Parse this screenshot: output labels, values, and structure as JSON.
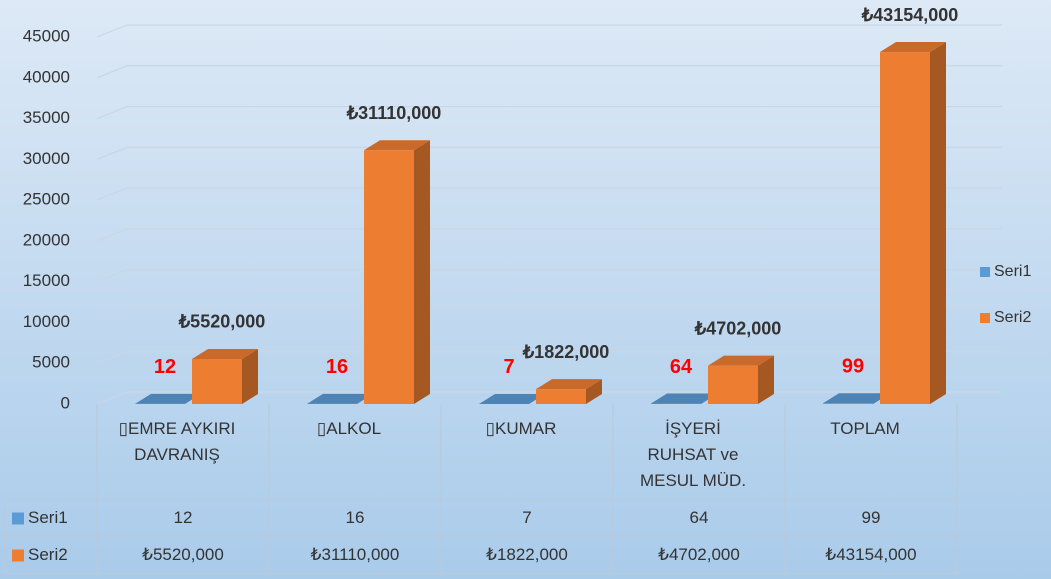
{
  "chart_data": {
    "type": "bar3d",
    "categories": [
      "▯EMRE AYKIRI DAVRANIŞ",
      "▯ALKOL",
      "▯KUMAR",
      "İŞYERİ RUHSAT ve MESUL MÜD.",
      "TOPLAM"
    ],
    "series": [
      {
        "name": "Seri1",
        "color": "#5b9bd5",
        "values": [
          12,
          16,
          7,
          64,
          99
        ]
      },
      {
        "name": "Seri2",
        "color": "#ed7d31",
        "values": [
          5520,
          31110,
          1822,
          4702,
          43154
        ],
        "value_labels": [
          "₺5520,000",
          "₺31110,000",
          "₺1822,000",
          "₺4702,000",
          "₺43154,000"
        ]
      }
    ],
    "ylim": [
      0,
      45000
    ],
    "yticks": [
      0,
      5000,
      10000,
      15000,
      20000,
      25000,
      30000,
      35000,
      40000,
      45000
    ],
    "grid": true,
    "legend": "right",
    "data_table": true
  }
}
